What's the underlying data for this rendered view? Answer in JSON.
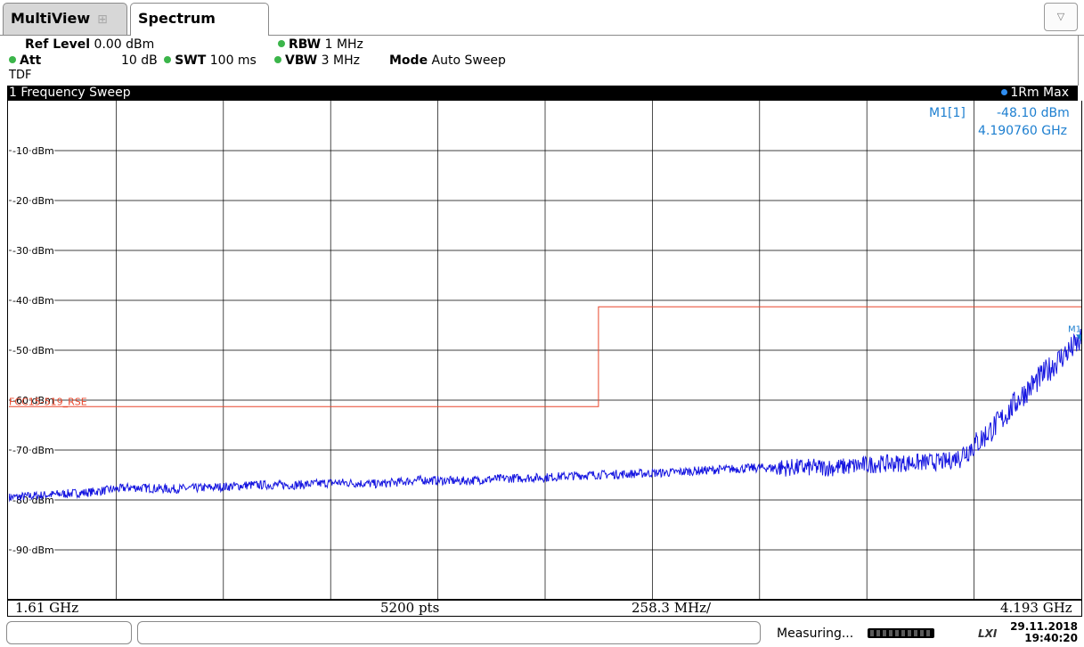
{
  "tabs": {
    "multiview": "MultiView",
    "spectrum": "Spectrum",
    "dropdown_icon": "chevron-down-icon"
  },
  "settings": {
    "ref_level_label": "Ref Level",
    "ref_level_value": "0.00 dBm",
    "att_label": "Att",
    "att_value": "10 dB",
    "tdf": "TDF",
    "swt_label": "SWT",
    "swt_value": "100 ms",
    "rbw_label": "RBW",
    "rbw_value": "1 MHz",
    "vbw_label": "VBW",
    "vbw_value": "3 MHz",
    "mode_label": "Mode",
    "mode_value": "Auto Sweep"
  },
  "window": {
    "title": "1 Frequency Sweep",
    "trace_label": "1Rm Max"
  },
  "marker": {
    "name": "M1[1]",
    "level": "-48.10 dBm",
    "frequency": "4.190760 GHz",
    "label": "M1"
  },
  "limit_line": {
    "label": "FCC15-519_RSE"
  },
  "footer": {
    "start": "1.61 GHz",
    "points": "5200 pts",
    "span_per_div": "258.3 MHz/",
    "stop": "4.193 GHz"
  },
  "status": {
    "measuring": "Measuring...",
    "date": "29.11.2018",
    "time": "19:40:20",
    "lxi": "LXI"
  },
  "colors": {
    "trace": "#1515e0",
    "limit": "#e8472c",
    "marker": "#1d7fd0",
    "grid": "#000000"
  },
  "chart_data": {
    "type": "line",
    "title": "1 Frequency Sweep",
    "x_unit": "GHz",
    "y_unit": "dBm",
    "xlim": [
      1.61,
      4.193
    ],
    "ylim": [
      -100,
      0
    ],
    "y_ticks": [
      -10,
      -20,
      -30,
      -40,
      -50,
      -60,
      -70,
      -80,
      -90
    ],
    "y_tick_labels": [
      "-10 dBm",
      "-20 dBm",
      "-30 dBm",
      "-40 dBm",
      "-50 dBm",
      "-60 dBm",
      "-70 dBm",
      "-80 dBm",
      "-90 dBm"
    ],
    "grid": true,
    "series": [
      {
        "name": "1Rm Max",
        "x": [
          1.61,
          1.7,
          1.8,
          1.9,
          2.0,
          2.1,
          2.2,
          2.3,
          2.4,
          2.5,
          2.6,
          2.7,
          2.8,
          2.9,
          3.0,
          3.1,
          3.2,
          3.3,
          3.4,
          3.5,
          3.6,
          3.7,
          3.8,
          3.87,
          3.9,
          3.95,
          4.0,
          4.05,
          4.1,
          4.15,
          4.193
        ],
        "y": [
          -79.5,
          -79.0,
          -78.5,
          -77.5,
          -77.8,
          -77.5,
          -77.0,
          -77.0,
          -76.5,
          -76.8,
          -76.0,
          -76.2,
          -75.7,
          -75.5,
          -75.0,
          -74.8,
          -74.5,
          -74.0,
          -73.6,
          -73.5,
          -73.5,
          -72.8,
          -72.5,
          -72.3,
          -71.2,
          -68.0,
          -64.0,
          -59.0,
          -55.0,
          -51.0,
          -48.1
        ]
      },
      {
        "name": "FCC15-519_RSE",
        "x": [
          1.61,
          1.96,
          1.96,
          3.03,
          3.03,
          4.193
        ],
        "y": [
          -61.3,
          -61.3,
          -61.3,
          -61.3,
          -41.3,
          -41.3
        ]
      }
    ],
    "markers": [
      {
        "name": "M1",
        "x": 4.19076,
        "y": -48.1
      }
    ]
  }
}
